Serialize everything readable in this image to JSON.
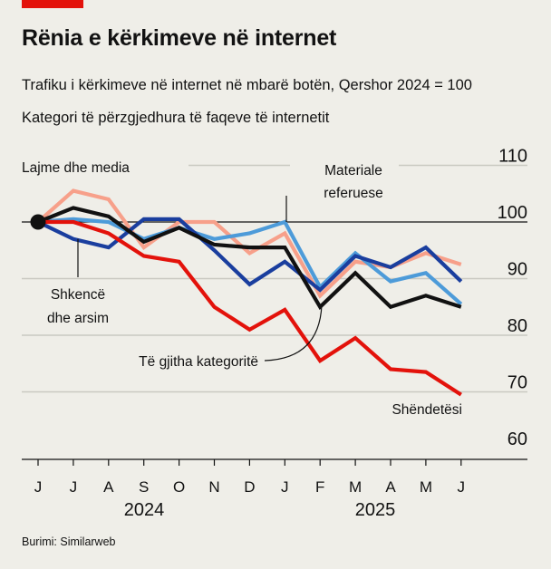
{
  "header": {
    "title": "Rënia e kërkimeve në internet",
    "subtitle": "Trafiku i kërkimeve në internet në mbarë botën, Qershor 2024 = 100",
    "subtitle2": "Kategori të përzgjedhura të faqeve të internetit"
  },
  "source": "Burimi: Similarweb",
  "chart_data": {
    "type": "line",
    "x": [
      "J",
      "J",
      "A",
      "S",
      "O",
      "N",
      "D",
      "J",
      "F",
      "M",
      "A",
      "M",
      "J"
    ],
    "years": [
      "2024",
      "2025"
    ],
    "ylim": [
      60,
      110
    ],
    "yticks": [
      60,
      70,
      80,
      90,
      100,
      110
    ],
    "series": [
      {
        "name": "Lajme dhe media",
        "color": "#f7a08a",
        "values": [
          100,
          105.5,
          104,
          95.5,
          100,
          100,
          94.5,
          98,
          87,
          93,
          92,
          94.5,
          92.5
        ]
      },
      {
        "name": "Materiale referuese",
        "color": "#4d9bd9",
        "values": [
          100,
          100.5,
          100,
          97,
          99,
          97,
          98,
          100,
          88.5,
          94.5,
          89.5,
          91,
          85.5
        ]
      },
      {
        "name": "Shkencë dhe arsim",
        "color": "#1a3e9e",
        "values": [
          100,
          97,
          95.5,
          100.5,
          100.5,
          95,
          89,
          93,
          88,
          94,
          92,
          95.5,
          89.5
        ]
      },
      {
        "name": "Të gjitha kategoritë",
        "color": "#111111",
        "values": [
          100,
          102.5,
          101,
          96.5,
          99,
          96,
          95.5,
          95.5,
          85,
          91,
          85,
          87,
          85
        ]
      },
      {
        "name": "Shëndetësi",
        "color": "#e3120b",
        "values": [
          100,
          100,
          98,
          94,
          93,
          85,
          81,
          84.5,
          75.5,
          79.5,
          74,
          73.5,
          69.5
        ]
      }
    ]
  }
}
